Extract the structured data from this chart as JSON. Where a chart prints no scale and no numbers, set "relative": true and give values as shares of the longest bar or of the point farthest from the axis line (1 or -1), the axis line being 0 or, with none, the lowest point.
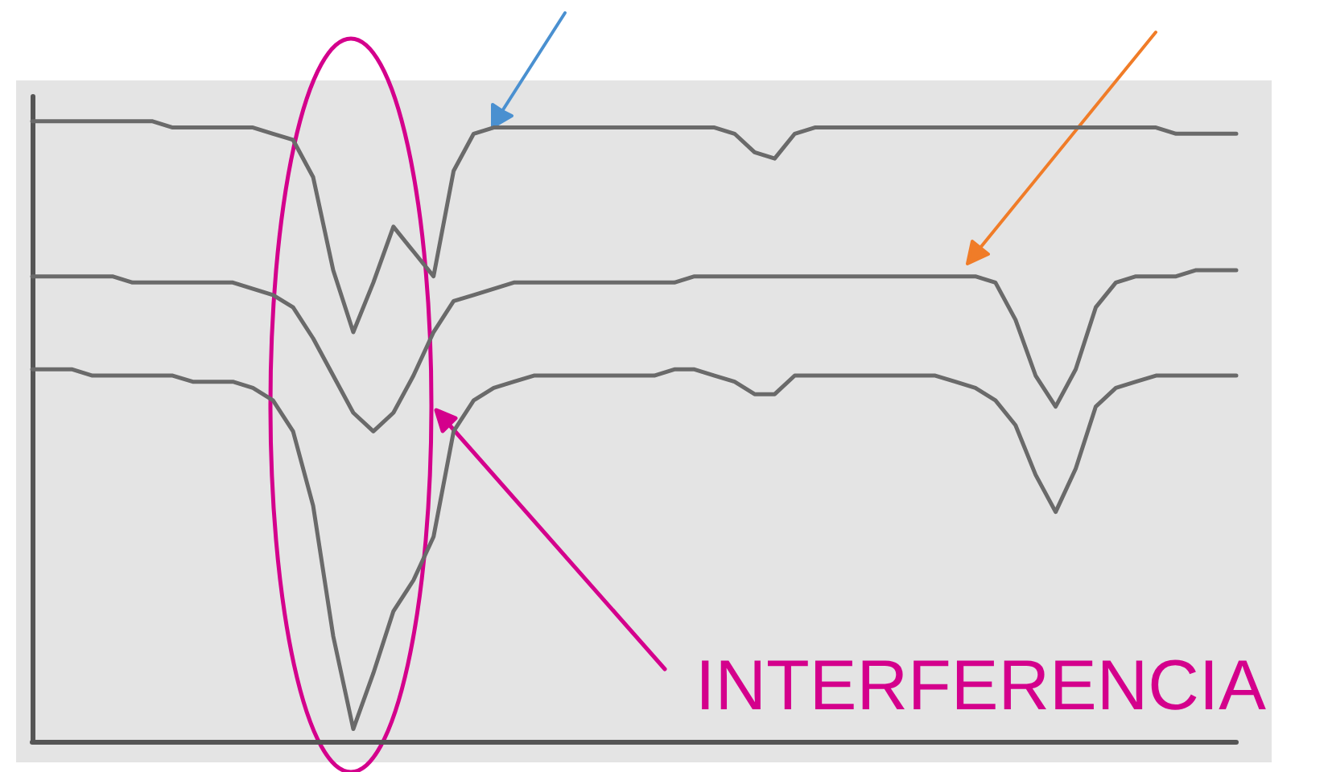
{
  "chart_data": {
    "type": "line",
    "relative": true,
    "marker": "none",
    "categories": [
      null,
      null,
      null,
      null,
      null,
      null,
      null,
      null,
      null,
      null,
      null,
      null,
      null,
      null,
      null,
      null,
      null,
      null,
      null,
      null,
      null,
      null,
      null,
      null,
      null,
      null,
      null,
      null,
      null,
      null,
      null,
      null,
      null,
      null,
      null,
      null,
      null,
      null,
      null,
      null,
      null,
      null,
      null,
      null,
      null,
      null,
      null,
      null,
      null,
      null,
      null,
      null,
      null,
      null,
      null,
      null,
      null,
      null,
      null,
      null,
      null
    ],
    "series": [
      {
        "color": "#6a6a6a",
        "values": [
          1,
          1,
          1,
          1,
          1,
          1,
          1,
          0.99,
          0.99,
          0.99,
          0.99,
          0.99,
          0.98,
          0.97,
          0.91,
          0.76,
          0.66,
          0.74,
          0.83,
          0.79,
          0.75,
          0.92,
          0.98,
          0.99,
          0.99,
          0.99,
          0.99,
          0.99,
          0.99,
          0.99,
          0.99,
          0.99,
          0.99,
          0.99,
          0.99,
          0.98,
          0.95,
          0.94,
          0.98,
          0.99,
          0.99,
          0.99,
          0.99,
          0.99,
          0.99,
          0.99,
          0.99,
          0.99,
          0.99,
          0.99,
          0.99,
          0.99,
          0.99,
          0.99,
          0.99,
          0.99,
          0.99,
          0.98,
          0.98,
          0.98,
          0.98
        ]
      },
      {
        "color": "#6a6a6a",
        "values": [
          0.75,
          0.75,
          0.75,
          0.75,
          0.75,
          0.74,
          0.74,
          0.74,
          0.74,
          0.74,
          0.74,
          0.73,
          0.72,
          0.7,
          0.65,
          0.59,
          0.53,
          0.5,
          0.53,
          0.59,
          0.66,
          0.71,
          0.72,
          0.73,
          0.74,
          0.74,
          0.74,
          0.74,
          0.74,
          0.74,
          0.74,
          0.74,
          0.74,
          0.75,
          0.75,
          0.75,
          0.75,
          0.75,
          0.75,
          0.75,
          0.75,
          0.75,
          0.75,
          0.75,
          0.75,
          0.75,
          0.75,
          0.75,
          0.74,
          0.68,
          0.59,
          0.54,
          0.6,
          0.7,
          0.74,
          0.75,
          0.75,
          0.75,
          0.76,
          0.76,
          0.76
        ]
      },
      {
        "color": "#6a6a6a",
        "values": [
          0.6,
          0.6,
          0.6,
          0.59,
          0.59,
          0.59,
          0.59,
          0.59,
          0.58,
          0.58,
          0.58,
          0.57,
          0.55,
          0.5,
          0.38,
          0.17,
          0.02,
          0.11,
          0.21,
          0.26,
          0.33,
          0.5,
          0.55,
          0.57,
          0.58,
          0.59,
          0.59,
          0.59,
          0.59,
          0.59,
          0.59,
          0.59,
          0.6,
          0.6,
          0.59,
          0.58,
          0.56,
          0.56,
          0.59,
          0.59,
          0.59,
          0.59,
          0.59,
          0.59,
          0.59,
          0.59,
          0.58,
          0.57,
          0.55,
          0.51,
          0.43,
          0.37,
          0.44,
          0.54,
          0.57,
          0.58,
          0.59,
          0.59,
          0.59,
          0.59,
          0.59
        ]
      }
    ],
    "annotations": [
      "INTERFERENCIA"
    ]
  }
}
